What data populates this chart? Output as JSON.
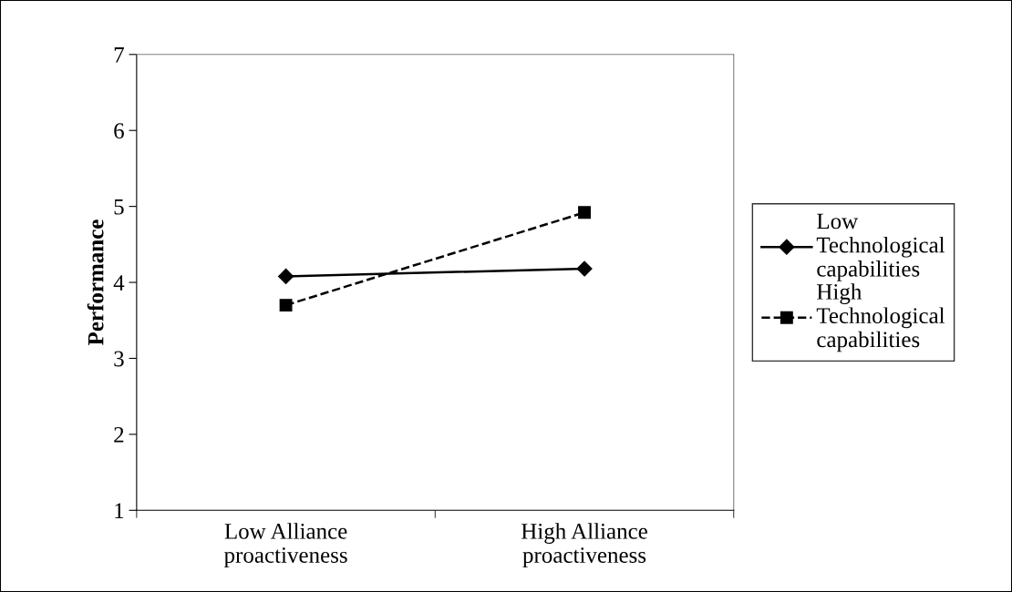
{
  "chart_data": {
    "type": "line",
    "ylabel": "Performance",
    "categories": [
      "Low Alliance\nproactiveness",
      "High Alliance\nproactiveness"
    ],
    "series": [
      {
        "name": "Low\nTechnological\ncapabilities",
        "color": "#000000",
        "values": [
          4.08,
          4.18
        ],
        "marker": "diamond",
        "line_style": "solid"
      },
      {
        "name": "High\nTechnological\ncapabilities",
        "color": "#000000",
        "values": [
          3.7,
          4.92
        ],
        "marker": "square",
        "line_style": "dashed"
      }
    ],
    "ylim": [
      1,
      7
    ],
    "yticks": [
      1,
      2,
      3,
      4,
      5,
      6,
      7
    ],
    "grid": false,
    "legend": "right"
  }
}
